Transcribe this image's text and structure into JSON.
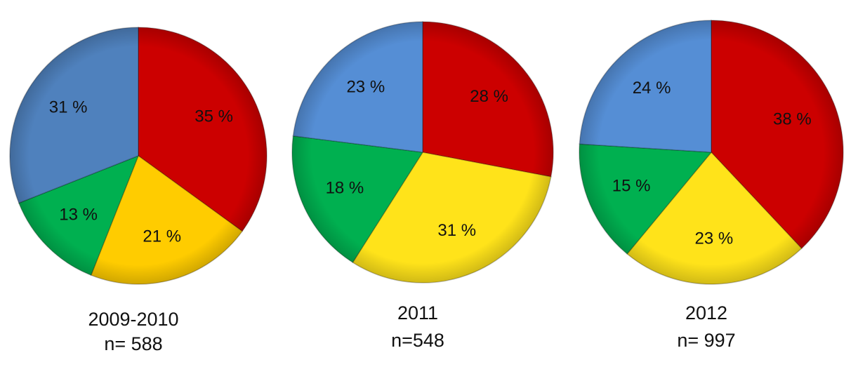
{
  "chart_data": [
    {
      "type": "pie",
      "title": "2009-2010",
      "subtitle": "n= 588",
      "values": [
        35,
        21,
        13,
        31
      ],
      "value_labels": [
        "35 %",
        "21 %",
        "13 %",
        "31 %"
      ],
      "colors": [
        "#cc0000",
        "#ffcc00",
        "#00b050",
        "#4f81bd"
      ]
    },
    {
      "type": "pie",
      "title": "2011",
      "subtitle": "n=548",
      "values": [
        28,
        31,
        18,
        23
      ],
      "value_labels": [
        "28 %",
        "31 %",
        "18 %",
        "23 %"
      ],
      "colors": [
        "#cc0000",
        "#ffe31a",
        "#00b050",
        "#558ed5"
      ]
    },
    {
      "type": "pie",
      "title": "2012",
      "subtitle": "n= 997",
      "values": [
        38,
        23,
        15,
        24
      ],
      "value_labels": [
        "38 %",
        "23 %",
        "15 %",
        "24 %"
      ],
      "colors": [
        "#cc0000",
        "#ffe31a",
        "#00b050",
        "#558ed5"
      ]
    }
  ]
}
